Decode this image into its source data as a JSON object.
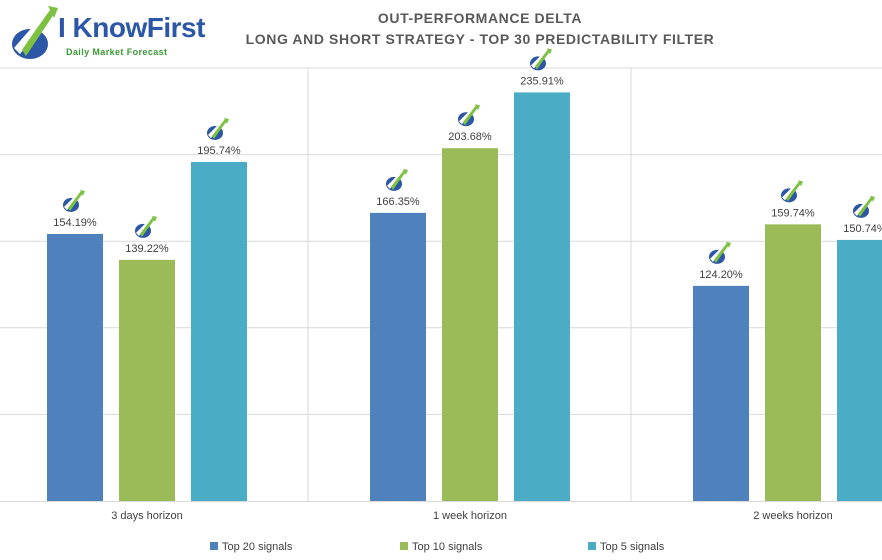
{
  "logo": {
    "name": "I KnowFirst",
    "tagline": "Daily Market Forecast",
    "icon": "iknowfirst-arrow-logo-icon"
  },
  "chart_data": {
    "type": "bar",
    "title": "OUT-PERFORMANCE DELTA",
    "subtitle": "LONG AND SHORT STRATEGY - TOP 30 PREDICTABILITY FILTER",
    "categories": [
      "3 days horizon",
      "1 week horizon",
      "2 weeks horizon"
    ],
    "series": [
      {
        "name": "Top 20 signals",
        "color": "#4f81bd",
        "values": [
          154.19,
          166.35,
          124.2
        ],
        "labels": [
          "154.19%",
          "166.35%",
          "124.20%"
        ]
      },
      {
        "name": "Top 10 signals",
        "color": "#9bbb59",
        "values": [
          139.22,
          203.68,
          159.74
        ],
        "labels": [
          "139.22%",
          "203.68%",
          "159.74%"
        ]
      },
      {
        "name": "Top 5 signals",
        "color": "#4bacc6",
        "values": [
          195.74,
          235.91,
          150.74
        ],
        "labels": [
          "195.74%",
          "235.91%",
          "150.74%"
        ]
      }
    ],
    "ylim": [
      0,
      250
    ],
    "grid": true,
    "legend": "bottom",
    "label_marker_icon": "iknowfirst-arrow-logo-icon"
  }
}
